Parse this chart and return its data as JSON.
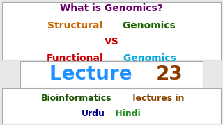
{
  "bg_color": "#e8e8e8",
  "top_box_color": "#ffffff",
  "mid_box_color": "#ffffff",
  "bot_box_color": "#ffffff",
  "line1": [
    {
      "text": "What is Genomics?",
      "color": "#6B006B"
    }
  ],
  "line2": [
    {
      "text": "Structural",
      "color": "#CC6600"
    },
    {
      "text": " Genomics",
      "color": "#1A6600"
    }
  ],
  "line3": [
    {
      "text": "VS",
      "color": "#CC0000"
    }
  ],
  "line4": [
    {
      "text": "Functional",
      "color": "#CC0000"
    },
    {
      "text": " Genomics",
      "color": "#00AADD"
    }
  ],
  "lecture_parts": [
    {
      "text": "Lecture ",
      "color": "#1E90FF"
    },
    {
      "text": "23",
      "color": "#8B3A00"
    }
  ],
  "bio_line1": [
    {
      "text": "Bioinformatics",
      "color": "#1A5200"
    },
    {
      "text": " lectures in",
      "color": "#8B4500"
    }
  ],
  "bio_line2": [
    {
      "text": "Urdu",
      "color": "#00008B"
    },
    {
      "text": " Hindi",
      "color": "#228B22"
    }
  ],
  "border_color": "#aaaaaa",
  "line_fontsize": 10,
  "lecture_fontsize": 20,
  "bio_fontsize": 9
}
